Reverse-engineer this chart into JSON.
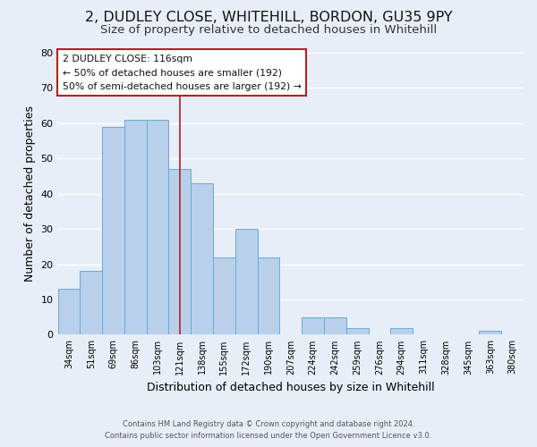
{
  "title1": "2, DUDLEY CLOSE, WHITEHILL, BORDON, GU35 9PY",
  "title2": "Size of property relative to detached houses in Whitehill",
  "xlabel": "Distribution of detached houses by size in Whitehill",
  "ylabel": "Number of detached properties",
  "bar_labels": [
    "34sqm",
    "51sqm",
    "69sqm",
    "86sqm",
    "103sqm",
    "121sqm",
    "138sqm",
    "155sqm",
    "172sqm",
    "190sqm",
    "207sqm",
    "224sqm",
    "242sqm",
    "259sqm",
    "276sqm",
    "294sqm",
    "311sqm",
    "328sqm",
    "345sqm",
    "363sqm",
    "380sqm"
  ],
  "bar_values": [
    13,
    18,
    59,
    61,
    61,
    47,
    43,
    22,
    30,
    22,
    0,
    5,
    5,
    2,
    0,
    2,
    0,
    0,
    0,
    1,
    0
  ],
  "bar_color": "#b8d0ea",
  "bar_edge_color": "#6aaad4",
  "marker_bar_index": 5,
  "marker_line_color": "#b22222",
  "ylim": [
    0,
    80
  ],
  "yticks": [
    0,
    10,
    20,
    30,
    40,
    50,
    60,
    70,
    80
  ],
  "annotation_title": "2 DUDLEY CLOSE: 116sqm",
  "annotation_line1": "← 50% of detached houses are smaller (192)",
  "annotation_line2": "50% of semi-detached houses are larger (192) →",
  "annotation_box_color": "#ffffff",
  "annotation_box_edge": "#b22222",
  "footer1": "Contains HM Land Registry data © Crown copyright and database right 2024.",
  "footer2": "Contains public sector information licensed under the Open Government Licence v3.0.",
  "bg_color": "#e8eef7",
  "grid_color": "#ffffff",
  "title1_fontsize": 11.5,
  "title2_fontsize": 9.5
}
